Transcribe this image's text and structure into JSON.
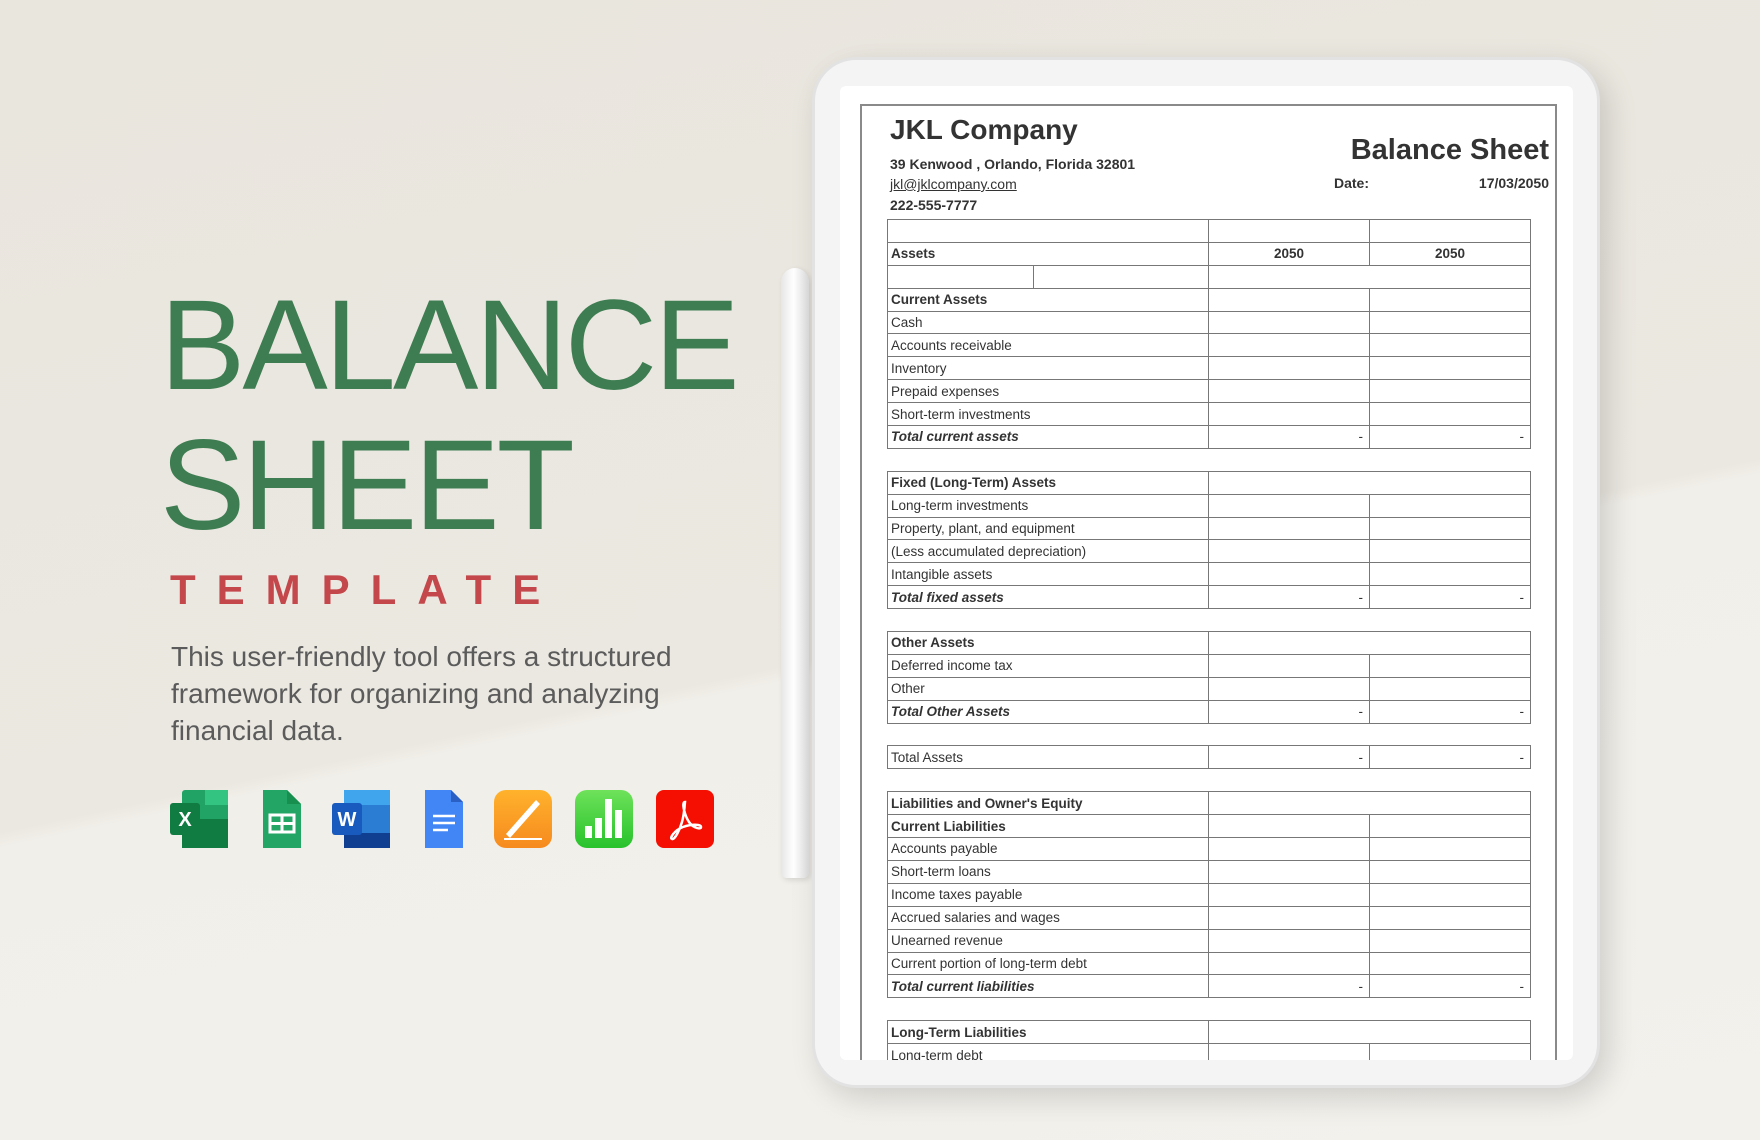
{
  "hero": {
    "title_line1": "BALANCE",
    "title_line2": "SHEET",
    "subtitle": "TEMPLATE",
    "description": "This user-friendly tool offers a structured framework for organizing and analyzing financial data.",
    "icons": [
      "excel-icon",
      "google-sheets-icon",
      "word-icon",
      "google-docs-icon",
      "pages-icon",
      "numbers-icon",
      "pdf-icon"
    ],
    "colors": {
      "title": "#3e7d52",
      "subtitle": "#c4484b"
    }
  },
  "document": {
    "company": "JKL Company",
    "address": "39 Kenwood , Orlando, Florida 32801",
    "email": "jkl@jklcompany.com",
    "phone": "222-555-7777",
    "title": "Balance Sheet",
    "date_label": "Date:",
    "date": "17/03/2050",
    "rows": [
      {
        "type": "split",
        "label": "",
        "v1": "",
        "v2": ""
      },
      {
        "type": "header",
        "label": "Assets",
        "v1": "2050",
        "v2": "2050"
      },
      {
        "type": "split3",
        "label": "",
        "v1": "",
        "v2": ""
      },
      {
        "type": "split",
        "style": "b",
        "label": "Current Assets",
        "v1": "",
        "v2": ""
      },
      {
        "type": "split",
        "label": "Cash",
        "v1": "",
        "v2": ""
      },
      {
        "type": "split",
        "label": "Accounts receivable",
        "v1": "",
        "v2": ""
      },
      {
        "type": "split",
        "label": "Inventory",
        "v1": "",
        "v2": ""
      },
      {
        "type": "split",
        "label": "Prepaid expenses",
        "v1": "",
        "v2": ""
      },
      {
        "type": "split",
        "label": "Short-term investments",
        "v1": "",
        "v2": ""
      },
      {
        "type": "split",
        "style": "bi",
        "label": "Total current assets",
        "v1": "-",
        "v2": "-"
      },
      {
        "type": "gap"
      },
      {
        "type": "merged",
        "style": "b",
        "label": "Fixed (Long-Term) Assets"
      },
      {
        "type": "split",
        "label": "Long-term investments",
        "v1": "",
        "v2": ""
      },
      {
        "type": "split",
        "label": "Property, plant, and equipment",
        "v1": "",
        "v2": ""
      },
      {
        "type": "split",
        "label": "(Less accumulated depreciation)",
        "v1": "",
        "v2": ""
      },
      {
        "type": "split",
        "label": "Intangible assets",
        "v1": "",
        "v2": ""
      },
      {
        "type": "split",
        "style": "bi",
        "label": "Total fixed assets",
        "v1": "-",
        "v2": "-"
      },
      {
        "type": "gap"
      },
      {
        "type": "merged",
        "style": "b",
        "label": "Other Assets"
      },
      {
        "type": "split",
        "label": "Deferred income tax",
        "v1": "",
        "v2": ""
      },
      {
        "type": "split",
        "label": "Other",
        "v1": "",
        "v2": ""
      },
      {
        "type": "split",
        "style": "bi",
        "label": "Total Other Assets",
        "v1": "-",
        "v2": "-"
      },
      {
        "type": "gap"
      },
      {
        "type": "split",
        "label": "Total Assets",
        "v1": "-",
        "v2": "-"
      },
      {
        "type": "gap"
      },
      {
        "type": "merged",
        "style": "b",
        "label": "Liabilities and Owner's Equity"
      },
      {
        "type": "split",
        "style": "b",
        "label": "Current Liabilities",
        "v1": "",
        "v2": ""
      },
      {
        "type": "split",
        "label": "Accounts payable",
        "v1": "",
        "v2": ""
      },
      {
        "type": "split",
        "label": "Short-term loans",
        "v1": "",
        "v2": ""
      },
      {
        "type": "split",
        "label": "Income taxes payable",
        "v1": "",
        "v2": ""
      },
      {
        "type": "split",
        "label": "Accrued salaries and wages",
        "v1": "",
        "v2": ""
      },
      {
        "type": "split",
        "label": "Unearned revenue",
        "v1": "",
        "v2": ""
      },
      {
        "type": "split",
        "label": "Current portion of long-term debt",
        "v1": "",
        "v2": ""
      },
      {
        "type": "split",
        "style": "bi",
        "label": "Total current liabilities",
        "v1": "-",
        "v2": "-"
      },
      {
        "type": "gap"
      },
      {
        "type": "merged",
        "style": "b",
        "label": "Long-Term Liabilities"
      },
      {
        "type": "split",
        "label": "Long-term debt",
        "v1": "",
        "v2": ""
      }
    ]
  }
}
